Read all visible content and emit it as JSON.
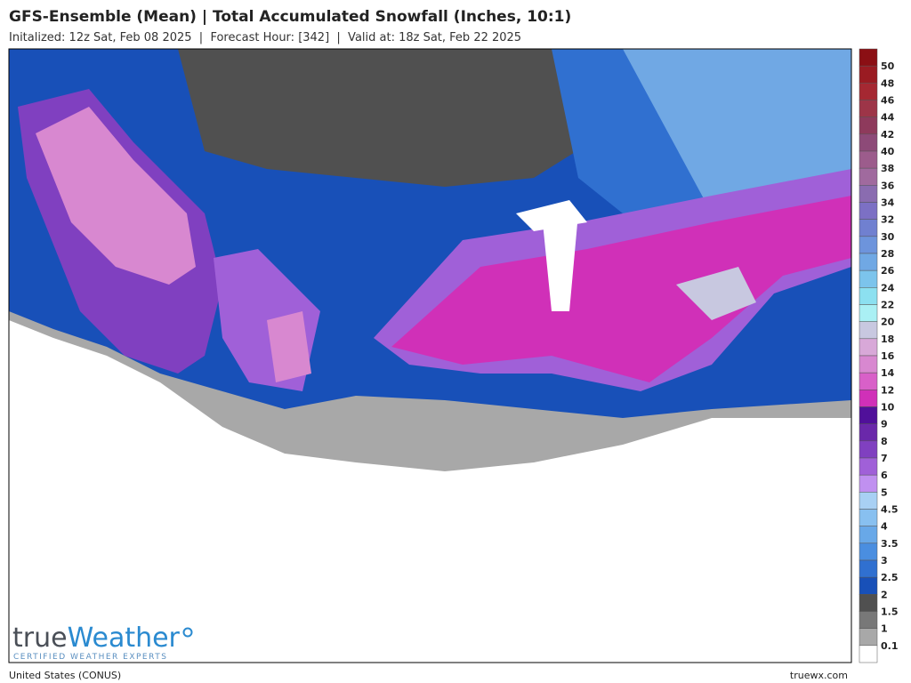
{
  "header": {
    "title": "GFS-Ensemble (Mean) | Total Accumulated Snowfall (Inches, 10:1)",
    "subtitle": "Initalized: 12z Sat, Feb 08 2025  |  Forecast Hour: [342]  |  Valid at: 18z Sat, Feb 22 2025"
  },
  "legend": {
    "labels": [
      "50",
      "48",
      "46",
      "44",
      "42",
      "40",
      "38",
      "36",
      "34",
      "32",
      "30",
      "28",
      "26",
      "24",
      "22",
      "20",
      "18",
      "16",
      "14",
      "12",
      "10",
      "9",
      "8",
      "7",
      "6",
      "5",
      "4.5",
      "4",
      "3.5",
      "3",
      "2.5",
      "2",
      "1.5",
      "1",
      "0.1"
    ],
    "colors": [
      "#8b0f14",
      "#9a1b22",
      "#a52832",
      "#9d3548",
      "#8e3a5c",
      "#8d4a78",
      "#9c5c8c",
      "#a06a9e",
      "#8a6cb0",
      "#7c70c4",
      "#7080d0",
      "#6d94dc",
      "#70a8e4",
      "#7cc4ec",
      "#8ce0f0",
      "#aaf0f4",
      "#c8c8e0",
      "#d8a8d8",
      "#d888d0",
      "#d860c8",
      "#d030b8",
      "#50109a",
      "#6a28aa",
      "#8040c0",
      "#a060d8",
      "#c090f0",
      "#a8d0f4",
      "#88c0f0",
      "#68a8e8",
      "#4a8ee0",
      "#3070d0",
      "#1850b8",
      "#505050",
      "#787878",
      "#a8a8a8",
      "#ffffff"
    ]
  },
  "logo": {
    "brand_a": "true",
    "brand_b": "Weather",
    "tagline": "CERTIFIED WEATHER EXPERTS"
  },
  "footer": {
    "left": "United States (CONUS)",
    "right": "truewx.com"
  }
}
